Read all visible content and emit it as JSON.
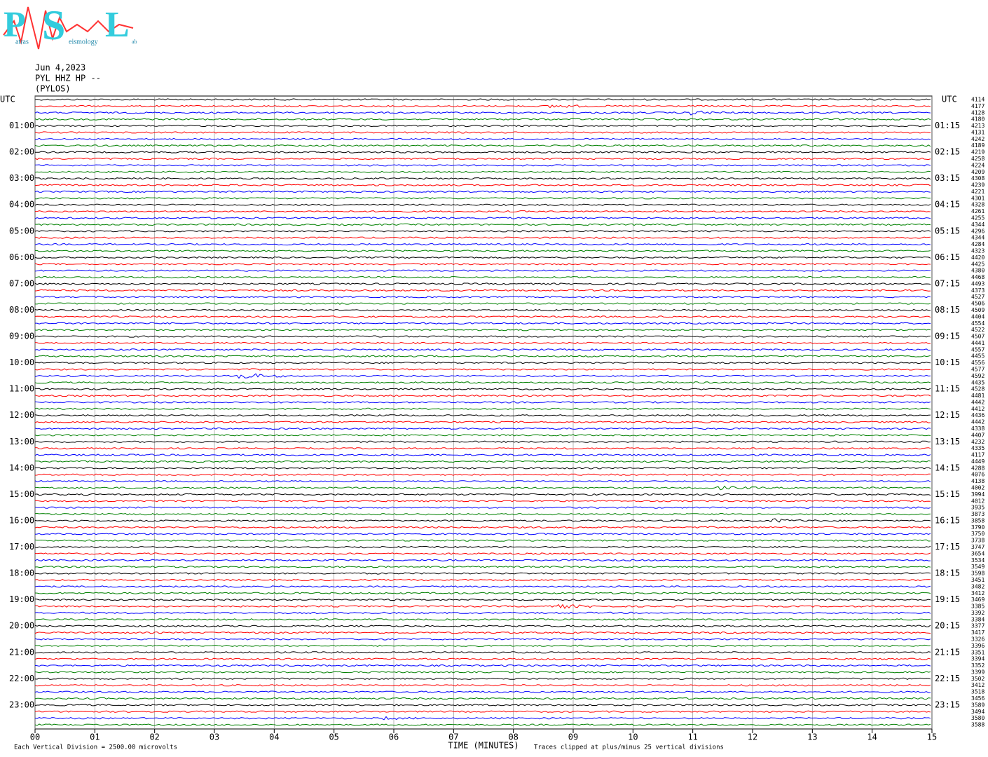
{
  "logo": {
    "big": [
      "P",
      "S",
      "L"
    ],
    "small": [
      "atras",
      "eismology",
      "ab"
    ]
  },
  "header": {
    "date": "Jun 4,2023",
    "station": "PYL HHZ HP --",
    "location": "(PYLOS)"
  },
  "chart_data": {
    "type": "helicorder",
    "xlabel": "TIME (MINUTES)",
    "xlim": [
      0,
      15
    ],
    "xticks": [
      {
        "value": 0,
        "label": "00"
      },
      {
        "value": 1,
        "label": "01"
      },
      {
        "value": 2,
        "label": "02"
      },
      {
        "value": 3,
        "label": "03"
      },
      {
        "value": 4,
        "label": "04"
      },
      {
        "value": 5,
        "label": "05"
      },
      {
        "value": 6,
        "label": "06"
      },
      {
        "value": 7,
        "label": "07"
      },
      {
        "value": 8,
        "label": "08"
      },
      {
        "value": 9,
        "label": "09"
      },
      {
        "value": 10,
        "label": "10"
      },
      {
        "value": 11,
        "label": "11"
      },
      {
        "value": 12,
        "label": "12"
      },
      {
        "value": 13,
        "label": "13"
      },
      {
        "value": 14,
        "label": "14"
      },
      {
        "value": 15,
        "label": "15"
      }
    ],
    "grid": true,
    "colors": [
      "#000000",
      "#ff0000",
      "#0000ff",
      "#008000"
    ],
    "left_labels": [
      "UTC",
      "01:00",
      "02:00",
      "03:00",
      "04:00",
      "05:00",
      "06:00",
      "07:00",
      "08:00",
      "09:00",
      "10:00",
      "11:00",
      "12:00",
      "13:00",
      "14:00",
      "15:00",
      "16:00",
      "17:00",
      "18:00",
      "19:00",
      "20:00",
      "21:00",
      "22:00",
      "23:00"
    ],
    "right_labels": [
      "UTC",
      "01:15",
      "02:15",
      "03:15",
      "04:15",
      "05:15",
      "06:15",
      "07:15",
      "08:15",
      "09:15",
      "10:15",
      "11:15",
      "12:15",
      "13:15",
      "14:15",
      "15:15",
      "16:15",
      "17:15",
      "18:15",
      "19:15",
      "20:15",
      "21:15",
      "22:15",
      "23:15"
    ],
    "row_values": [
      4114,
      4177,
      4128,
      4180,
      4213,
      4131,
      4242,
      4189,
      4219,
      4258,
      4224,
      4209,
      4308,
      4239,
      4221,
      4301,
      4328,
      4261,
      4255,
      4344,
      4296,
      4344,
      4284,
      4323,
      4420,
      4425,
      4380,
      4468,
      4493,
      4373,
      4527,
      4506,
      4509,
      4404,
      4554,
      4522,
      4507,
      4441,
      4557,
      4455,
      4556,
      4577,
      4592,
      4435,
      4528,
      4481,
      4442,
      4412,
      4436,
      4442,
      4338,
      4407,
      4232,
      4335,
      4117,
      4449,
      4288,
      4076,
      4138,
      4002,
      3994,
      4012,
      3935,
      3873,
      3858,
      3790,
      3750,
      3738,
      3747,
      3654,
      3534,
      3549,
      3598,
      3451,
      3482,
      3412,
      3469,
      3385,
      3392,
      3384,
      3377,
      3417,
      3326,
      3396,
      3351,
      3394,
      3352,
      3399,
      3502,
      3412,
      3518,
      3456,
      3589,
      3494,
      3580,
      3588
    ],
    "footnote_left": "Each Vertical Division = 2500.00 microvolts",
    "footnote_right": "Traces clipped at plus/minus 25 vertical divisions"
  }
}
